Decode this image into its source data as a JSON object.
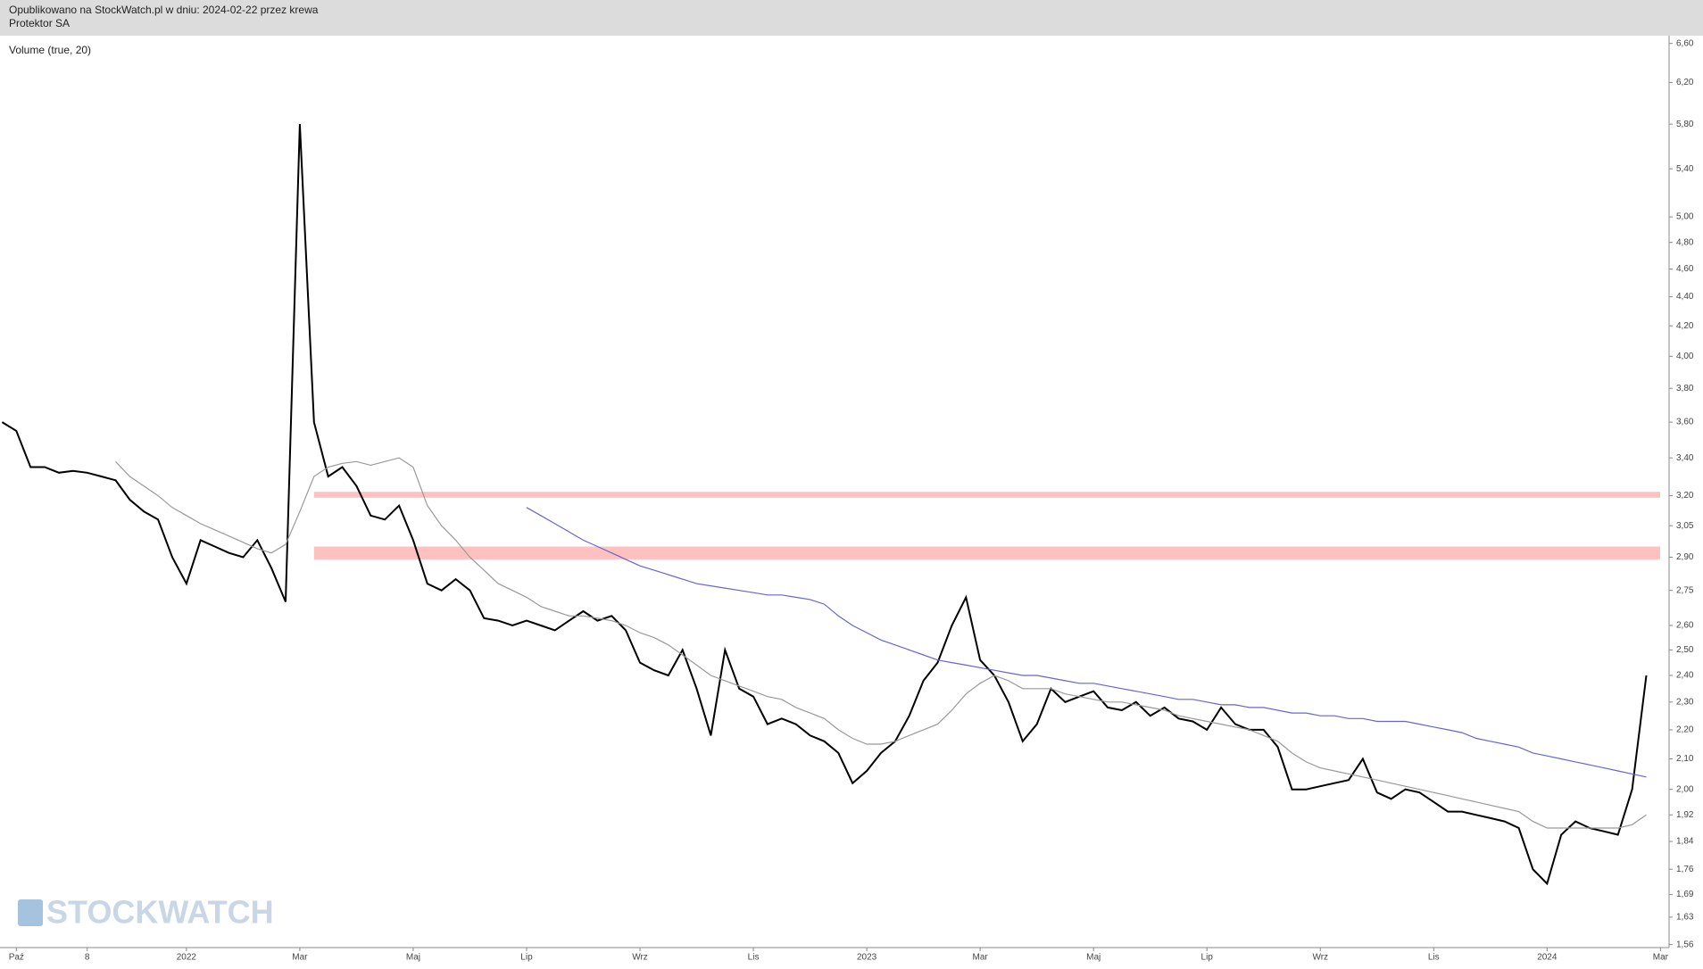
{
  "header": {
    "line1": "Opublikowano na StockWatch.pl w dniu: 2024-02-22 przez krewa",
    "line2": "Protektor SA"
  },
  "indicator_label": "Volume (true, 20)",
  "watermark": "STOCKWATCH",
  "chart_data": {
    "type": "line",
    "log_scale": true,
    "grid": false,
    "categories": [
      null,
      "Paź",
      null,
      null,
      null,
      null,
      "8",
      null,
      null,
      null,
      null,
      null,
      null,
      "2022",
      null,
      null,
      null,
      null,
      null,
      null,
      null,
      "Mar",
      null,
      null,
      null,
      null,
      null,
      null,
      null,
      "Maj",
      null,
      null,
      null,
      null,
      null,
      null,
      null,
      "Lip",
      null,
      null,
      null,
      null,
      null,
      null,
      null,
      "Wrz",
      null,
      null,
      null,
      null,
      null,
      null,
      null,
      "Lis",
      null,
      null,
      null,
      null,
      null,
      null,
      null,
      "2023",
      null,
      null,
      null,
      null,
      null,
      null,
      null,
      "Mar",
      null,
      null,
      null,
      null,
      null,
      null,
      null,
      "Maj",
      null,
      null,
      null,
      null,
      null,
      null,
      null,
      "Lip",
      null,
      null,
      null,
      null,
      null,
      null,
      null,
      "Wrz",
      null,
      null,
      null,
      null,
      null,
      null,
      null,
      "Lis",
      null,
      null,
      null,
      null,
      null,
      null,
      null,
      "2024",
      null,
      null,
      null,
      null,
      null,
      null,
      null,
      "Mar"
    ],
    "series": [
      {
        "color": "#000000",
        "values": [
          3.6,
          3.55,
          3.35,
          3.35,
          3.32,
          3.33,
          3.32,
          3.3,
          3.28,
          3.18,
          3.12,
          3.08,
          2.9,
          2.78,
          2.98,
          2.95,
          2.92,
          2.9,
          2.98,
          2.85,
          2.7,
          5.8,
          3.6,
          3.3,
          3.35,
          3.25,
          3.1,
          3.08,
          3.15,
          2.98,
          2.78,
          2.75,
          2.8,
          2.75,
          2.63,
          2.62,
          2.6,
          2.62,
          2.6,
          2.58,
          2.62,
          2.66,
          2.62,
          2.64,
          2.58,
          2.45,
          2.42,
          2.4,
          2.5,
          2.35,
          2.18,
          2.5,
          2.35,
          2.32,
          2.22,
          2.24,
          2.22,
          2.18,
          2.16,
          2.12,
          2.02,
          2.06,
          2.12,
          2.16,
          2.25,
          2.38,
          2.45,
          2.6,
          2.72,
          2.46,
          2.4,
          2.3,
          2.16,
          2.22,
          2.35,
          2.3,
          2.32,
          2.34,
          2.28,
          2.27,
          2.3,
          2.25,
          2.28,
          2.24,
          2.23,
          2.2,
          2.28,
          2.22,
          2.2,
          2.2,
          2.14,
          2.0,
          2.0,
          2.01,
          2.02,
          2.03,
          2.1,
          1.99,
          1.97,
          2.0,
          1.99,
          1.96,
          1.93,
          1.93,
          1.92,
          1.91,
          1.9,
          1.88,
          1.76,
          1.72,
          1.86,
          1.9,
          1.88,
          1.87,
          1.86,
          2.0,
          2.4,
          null
        ]
      },
      {
        "color": "#999999",
        "values": [
          null,
          null,
          null,
          null,
          null,
          null,
          null,
          null,
          3.38,
          3.3,
          3.25,
          3.2,
          3.14,
          3.1,
          3.06,
          3.03,
          3.0,
          2.97,
          2.94,
          2.92,
          2.96,
          3.12,
          3.3,
          3.35,
          3.37,
          3.38,
          3.36,
          3.38,
          3.4,
          3.35,
          3.15,
          3.05,
          2.98,
          2.9,
          2.84,
          2.78,
          2.75,
          2.72,
          2.68,
          2.66,
          2.64,
          2.64,
          2.63,
          2.62,
          2.6,
          2.57,
          2.55,
          2.52,
          2.48,
          2.44,
          2.4,
          2.38,
          2.36,
          2.34,
          2.32,
          2.31,
          2.28,
          2.26,
          2.24,
          2.2,
          2.17,
          2.15,
          2.15,
          2.16,
          2.18,
          2.2,
          2.22,
          2.27,
          2.33,
          2.37,
          2.4,
          2.38,
          2.35,
          2.35,
          2.35,
          2.33,
          2.32,
          2.31,
          2.3,
          2.3,
          2.29,
          2.28,
          2.27,
          2.25,
          2.24,
          2.23,
          2.22,
          2.21,
          2.2,
          2.18,
          2.16,
          2.12,
          2.09,
          2.07,
          2.06,
          2.05,
          2.04,
          2.03,
          2.02,
          2.01,
          2.0,
          1.99,
          1.98,
          1.97,
          1.96,
          1.95,
          1.94,
          1.93,
          1.9,
          1.88,
          1.88,
          1.88,
          1.88,
          1.88,
          1.88,
          1.89,
          1.92,
          null
        ]
      },
      {
        "color": "#6666cc",
        "values": [
          null,
          null,
          null,
          null,
          null,
          null,
          null,
          null,
          null,
          null,
          null,
          null,
          null,
          null,
          null,
          null,
          null,
          null,
          null,
          null,
          null,
          null,
          null,
          null,
          null,
          null,
          null,
          null,
          null,
          null,
          null,
          null,
          null,
          null,
          null,
          null,
          null,
          3.14,
          3.1,
          3.06,
          3.02,
          2.98,
          2.95,
          2.92,
          2.89,
          2.86,
          2.84,
          2.82,
          2.8,
          2.78,
          2.77,
          2.76,
          2.75,
          2.74,
          2.73,
          2.73,
          2.72,
          2.71,
          2.69,
          2.64,
          2.6,
          2.57,
          2.54,
          2.52,
          2.5,
          2.48,
          2.46,
          2.45,
          2.44,
          2.43,
          2.42,
          2.41,
          2.4,
          2.4,
          2.39,
          2.38,
          2.37,
          2.37,
          2.36,
          2.35,
          2.34,
          2.33,
          2.32,
          2.31,
          2.31,
          2.3,
          2.29,
          2.29,
          2.28,
          2.28,
          2.27,
          2.26,
          2.26,
          2.25,
          2.25,
          2.24,
          2.24,
          2.23,
          2.23,
          2.23,
          2.22,
          2.21,
          2.2,
          2.19,
          2.17,
          2.16,
          2.15,
          2.14,
          2.12,
          2.11,
          2.1,
          2.09,
          2.08,
          2.07,
          2.06,
          2.05,
          2.04,
          null
        ]
      }
    ],
    "bands": [
      {
        "low": 3.19,
        "high": 3.22,
        "color": "#ffc0c0"
      },
      {
        "low": 2.89,
        "high": 2.95,
        "color": "#ffc0c0"
      }
    ],
    "ylim": [
      1.56,
      6.6
    ],
    "yticks": [
      {
        "value": 1.56,
        "label": "1,56"
      },
      {
        "value": 1.63,
        "label": "1,63"
      },
      {
        "value": 1.69,
        "label": "1,69"
      },
      {
        "value": 1.76,
        "label": "1,76"
      },
      {
        "value": 1.84,
        "label": "1,84"
      },
      {
        "value": 1.92,
        "label": "1,92"
      },
      {
        "value": 2.0,
        "label": "2,00"
      },
      {
        "value": 2.1,
        "label": "2,10"
      },
      {
        "value": 2.2,
        "label": "2,20"
      },
      {
        "value": 2.3,
        "label": "2,30"
      },
      {
        "value": 2.4,
        "label": "2,40"
      },
      {
        "value": 2.5,
        "label": "2,50"
      },
      {
        "value": 2.6,
        "label": "2,60"
      },
      {
        "value": 2.75,
        "label": "2,75"
      },
      {
        "value": 2.9,
        "label": "2,90"
      },
      {
        "value": 3.05,
        "label": "3,05"
      },
      {
        "value": 3.2,
        "label": "3,20"
      },
      {
        "value": 3.4,
        "label": "3,40"
      },
      {
        "value": 3.6,
        "label": "3,60"
      },
      {
        "value": 3.8,
        "label": "3,80"
      },
      {
        "value": 4.0,
        "label": "4,00"
      },
      {
        "value": 4.2,
        "label": "4,20"
      },
      {
        "value": 4.4,
        "label": "4,40"
      },
      {
        "value": 4.6,
        "label": "4,60"
      },
      {
        "value": 4.8,
        "label": "4,80"
      },
      {
        "value": 5.0,
        "label": "5,00"
      },
      {
        "value": 5.4,
        "label": "5,40"
      },
      {
        "value": 5.8,
        "label": "5,80"
      },
      {
        "value": 6.2,
        "label": "6,20"
      },
      {
        "value": 6.6,
        "label": "6,60"
      }
    ]
  }
}
